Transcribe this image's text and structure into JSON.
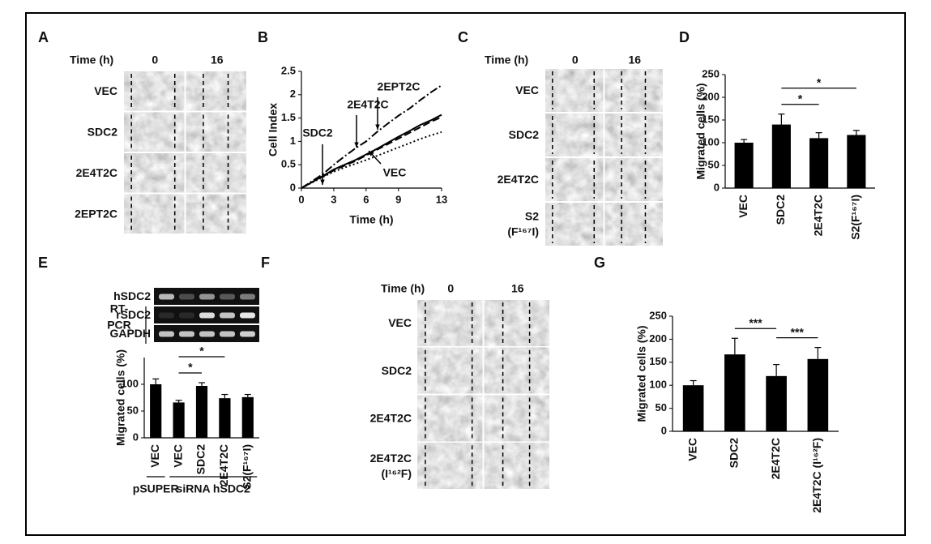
{
  "panel_letters": [
    "A",
    "B",
    "C",
    "D",
    "E",
    "F",
    "G"
  ],
  "wound_assays": [
    {
      "time_label": "Time (h)",
      "times": [
        "0",
        "16"
      ],
      "rows": [
        [
          "VEC"
        ],
        [
          "SDC2"
        ],
        [
          "2E4T2C"
        ],
        [
          "2EPT2C"
        ]
      ]
    },
    {
      "time_label": "Time (h)",
      "times": [
        "0",
        "16"
      ],
      "rows": [
        [
          "VEC"
        ],
        [
          "SDC2"
        ],
        [
          "2E4T2C"
        ],
        [
          "S2",
          "(F¹⁶⁷I)"
        ]
      ]
    },
    {
      "time_label": "Time (h)",
      "times": [
        "0",
        "16"
      ],
      "rows": [
        [
          "VEC"
        ],
        [
          "SDC2"
        ],
        [
          "2E4T2C"
        ],
        [
          "2E4T2C",
          "(I¹⁶²F)"
        ]
      ]
    }
  ],
  "gel": {
    "side_label": [
      "RT-",
      "PCR"
    ],
    "rows": [
      "hSDC2",
      "rSDC2",
      "GAPDH"
    ]
  },
  "chart_data": [
    {
      "type": "line",
      "y_label": "Cell Index",
      "x_label": "Time (h)",
      "x": [
        0,
        1,
        2,
        3,
        4,
        5,
        6,
        7,
        8,
        9,
        10,
        11,
        12,
        13
      ],
      "xlim": [
        0,
        13
      ],
      "xticks": [
        0,
        3,
        6,
        9,
        13
      ],
      "ylim": [
        0,
        2.5
      ],
      "yticks": [
        0,
        0.5,
        1,
        1.5,
        2,
        2.5
      ],
      "series": [
        {
          "name": "SDC2",
          "color": "#000000",
          "line_style": "solid",
          "values": [
            0,
            0.13,
            0.26,
            0.4,
            0.5,
            0.6,
            0.72,
            0.84,
            0.97,
            1.1,
            1.22,
            1.35,
            1.45,
            1.57
          ]
        },
        {
          "name": "2E4T2C",
          "color": "#000000",
          "line_style": "dashed",
          "values": [
            0,
            0.13,
            0.25,
            0.38,
            0.48,
            0.58,
            0.7,
            0.82,
            0.94,
            1.06,
            1.18,
            1.3,
            1.42,
            1.52
          ]
        },
        {
          "name": "2EPT2C",
          "color": "#000000",
          "line_style": "dashdot",
          "values": [
            0,
            0.15,
            0.3,
            0.5,
            0.68,
            0.85,
            1.0,
            1.2,
            1.38,
            1.55,
            1.7,
            1.88,
            2.05,
            2.2
          ]
        },
        {
          "name": "VEC",
          "color": "#000000",
          "line_style": "dotted",
          "values": [
            0,
            0.12,
            0.24,
            0.35,
            0.44,
            0.52,
            0.6,
            0.69,
            0.78,
            0.87,
            0.96,
            1.05,
            1.13,
            1.2
          ]
        }
      ]
    },
    {
      "type": "bar",
      "y_label": "Migrated cells (%)",
      "categories": [
        "VEC",
        "SDC2",
        "2E4T2C",
        "S2(F¹⁶⁷I)"
      ],
      "values": [
        100,
        140,
        110,
        117
      ],
      "errors": [
        7,
        23,
        12,
        10
      ],
      "color": "#000000",
      "ylim": [
        0,
        250
      ],
      "yticks": [
        0,
        50,
        100,
        150,
        200,
        250
      ],
      "significance": [
        {
          "text": "*",
          "span": [
            1,
            2
          ]
        },
        {
          "text": "*",
          "span": [
            1,
            3
          ]
        }
      ]
    },
    {
      "type": "bar",
      "y_label": "Migrated cells (%)",
      "categories": [
        "VEC",
        "VEC",
        "SDC2",
        "2E4T2C",
        "S2(F¹⁶⁷I)"
      ],
      "values": [
        100,
        66,
        97,
        74,
        76
      ],
      "errors": [
        10,
        4,
        6,
        7,
        5
      ],
      "color": "#000000",
      "ylim": [
        0,
        150
      ],
      "yticks": [
        0,
        50,
        100
      ],
      "significance": [
        {
          "text": "*",
          "span": [
            1,
            2
          ]
        },
        {
          "text": "*",
          "span": [
            1,
            3
          ]
        }
      ],
      "groups": [
        {
          "label": "pSUPER",
          "span": [
            0,
            0
          ]
        },
        {
          "label": "siRNA hSDC2",
          "span": [
            1,
            4
          ]
        }
      ]
    },
    {
      "type": "bar",
      "y_label": "Migrated cells (%)",
      "categories": [
        "VEC",
        "SDC2",
        "2E4T2C",
        "2E4T2C (I¹⁶²F)"
      ],
      "values": [
        100,
        167,
        120,
        157
      ],
      "errors": [
        10,
        35,
        25,
        25
      ],
      "color": "#000000",
      "ylim": [
        0,
        250
      ],
      "yticks": [
        0,
        50,
        100,
        150,
        200,
        250
      ],
      "significance": [
        {
          "text": "***",
          "span": [
            1,
            2
          ]
        },
        {
          "text": "***",
          "span": [
            2,
            3
          ]
        }
      ]
    }
  ]
}
